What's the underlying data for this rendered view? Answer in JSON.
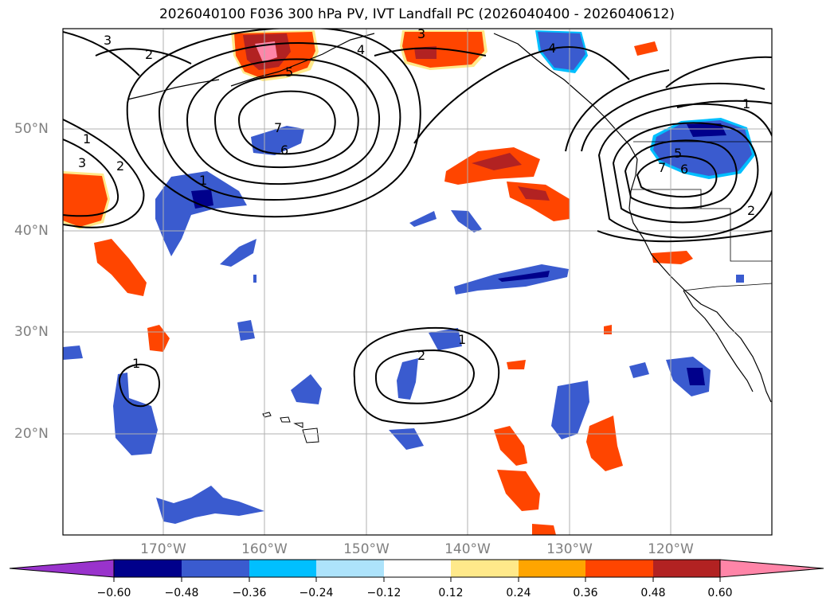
{
  "title": "2026040100 F036 300 hPa PV, IVT Landfall PC (2026040400 - 2026040612)",
  "latitude_labels": [
    "50°N",
    "40°N",
    "30°N",
    "20°N"
  ],
  "longitude_labels": [
    "170°W",
    "160°W",
    "150°W",
    "140°W",
    "130°W",
    "120°W"
  ],
  "colorbar": {
    "ticks": [
      "−0.60",
      "−0.48",
      "−0.36",
      "−0.24",
      "−0.12",
      "0.12",
      "0.24",
      "0.36",
      "0.48",
      "0.60"
    ],
    "colors": [
      "#9933cc",
      "#00008b",
      "#3a5bcf",
      "#00bfff",
      "#ade3fb",
      "#ffffff",
      "#ffe98a",
      "#ffa500",
      "#ff4500",
      "#b22222",
      "#ff85a8"
    ]
  },
  "contour_labels": [
    "3",
    "2",
    "1",
    "2",
    "3",
    "1",
    "4",
    "5",
    "6",
    "7",
    "3",
    "4",
    "1",
    "5",
    "6",
    "7",
    "2",
    "1",
    "2",
    "1"
  ],
  "colors": {
    "neg_dark": "#00008b",
    "neg_mid": "#3a5bcf",
    "neg_light": "#00bfff",
    "pos_light": "#ffe98a",
    "pos_mid": "#ff4500",
    "pos_dark": "#b22222",
    "pos_max": "#ff85a8",
    "grid": "#b0b0b0"
  }
}
